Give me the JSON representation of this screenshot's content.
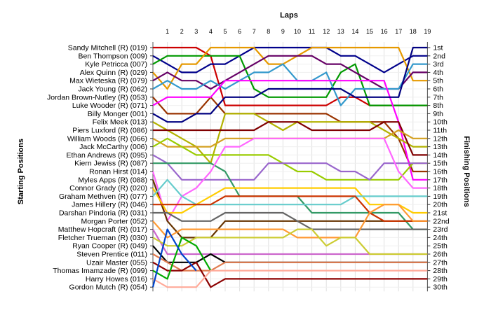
{
  "chart_data": {
    "type": "line",
    "title": "",
    "xlabel": "Laps",
    "ylabel_left": "Starting Positions",
    "ylabel_right": "Finishing Positions",
    "laps": [
      1,
      2,
      3,
      4,
      5,
      6,
      7,
      8,
      9,
      10,
      11,
      12,
      13,
      14,
      15,
      16,
      17,
      18,
      19
    ],
    "x_start_label": "",
    "grid": true,
    "drivers": [
      "Sandy Mitchell (R) (019)",
      "Ben Thompson (009)",
      "Kyle Petricca (007)",
      "Alex Quinn (R) (029)",
      "Max Wieteska (R) (079)",
      "Jack Young (R) (062)",
      "Jordan Brown-Nutley (R) (053)",
      "Luke Wooder (R) (071)",
      "Billy Monger (001)",
      "Felix Meek (013)",
      "Piers Luxford (R) (086)",
      "William Woods (R) (066)",
      "Jack McCarthy (006)",
      "Ethan Andrews (R) (095)",
      "Kiern Jewiss (R) (087)",
      "Ronan Hirst (014)",
      "Myles Apps (R) (088)",
      "Connor Grady (R) (020)",
      "Graham Methven (R) (077)",
      "James Hillery (R) (046)",
      "Darshan Pindoria (R) (031)",
      "Morgan Porter (052)",
      "Matthew Hopcraft (R) (017)",
      "Fletcher Trueman (R) (030)",
      "Ryan Cooper (R) (049)",
      "Steven Prentice (011)",
      "Uzair Master (055)",
      "Thomas Imamzade (R) (099)",
      "Harry Howes (016)",
      "Gordon Mutch (R) (054)"
    ],
    "finishing_labels": [
      "1st",
      "2nd",
      "3rd",
      "4th",
      "5th",
      "6th",
      "7th",
      "8th",
      "9th",
      "10th",
      "11th",
      "12th",
      "13th",
      "14th",
      "15th",
      "16th",
      "17th",
      "18th",
      "19th",
      "20th",
      "21st",
      "22nd",
      "23rd",
      "24th",
      "25th",
      "26th",
      "27th",
      "28th",
      "29th",
      "30th"
    ],
    "series": [
      {
        "color": "#cc0000",
        "positions": [
          1,
          1,
          1,
          1,
          2,
          8,
          8,
          8,
          8,
          8,
          8,
          8,
          8,
          7,
          7,
          8,
          8,
          8,
          8,
          8
        ]
      },
      {
        "color": "#00008b",
        "positions": [
          2,
          3,
          4,
          4,
          3,
          3,
          2,
          1,
          1,
          1,
          1,
          1,
          1,
          2,
          2,
          3,
          4,
          3,
          2,
          2
        ]
      },
      {
        "color": "#009900",
        "positions": [
          3,
          2,
          2,
          2,
          2,
          2,
          2,
          6,
          7,
          7,
          7,
          7,
          7,
          4,
          3,
          8,
          8,
          8,
          8,
          8
        ]
      },
      {
        "color": "#e69900",
        "positions": [
          4,
          6,
          3,
          3,
          1,
          1,
          1,
          1,
          3,
          3,
          2,
          1,
          1,
          1,
          1,
          1,
          1,
          1,
          5,
          5
        ]
      },
      {
        "color": "#660066",
        "positions": [
          5,
          4,
          5,
          5,
          6,
          5,
          4,
          3,
          2,
          2,
          2,
          2,
          3,
          3,
          4,
          5,
          6,
          6,
          4,
          4
        ]
      },
      {
        "color": "#3399cc",
        "positions": [
          6,
          5,
          6,
          6,
          5,
          6,
          5,
          4,
          4,
          3,
          5,
          5,
          4,
          8,
          6,
          6,
          6,
          6,
          3,
          3
        ]
      },
      {
        "color": "#993300",
        "positions": [
          7,
          9,
          9,
          9,
          7,
          9,
          9,
          9,
          9,
          9,
          9,
          9,
          9,
          10,
          10,
          10,
          10,
          12,
          16,
          16
        ]
      },
      {
        "color": "#ff00ff",
        "positions": [
          8,
          7,
          7,
          7,
          7,
          5,
          5,
          5,
          5,
          5,
          5,
          5,
          5,
          5,
          5,
          5,
          5,
          10,
          17,
          17
        ]
      },
      {
        "color": "#000080",
        "positions": [
          9,
          10,
          10,
          9,
          9,
          7,
          7,
          7,
          6,
          6,
          6,
          6,
          6,
          6,
          7,
          7,
          7,
          7,
          1,
          1
        ]
      },
      {
        "color": "#b2b200",
        "positions": [
          10,
          11,
          12,
          13,
          15,
          9,
          9,
          9,
          10,
          11,
          10,
          10,
          10,
          10,
          10,
          10,
          11,
          12,
          13,
          13
        ]
      },
      {
        "color": "#800000",
        "positions": [
          11,
          11,
          11,
          11,
          11,
          11,
          11,
          11,
          10,
          10,
          10,
          11,
          11,
          11,
          11,
          11,
          10,
          10,
          14,
          14
        ]
      },
      {
        "color": "#d4a020",
        "positions": [
          12,
          13,
          13,
          13,
          13,
          12,
          12,
          12,
          12,
          12,
          12,
          12,
          12,
          12,
          12,
          12,
          12,
          11,
          12,
          12
        ]
      },
      {
        "color": "#99cc00",
        "positions": [
          13,
          12,
          13,
          14,
          14,
          14,
          14,
          14,
          14,
          15,
          16,
          16,
          17,
          17,
          17,
          17,
          17,
          17,
          15,
          15
        ]
      },
      {
        "color": "#9966cc",
        "positions": [
          14,
          15,
          17,
          17,
          17,
          17,
          17,
          17,
          15,
          15,
          15,
          15,
          15,
          16,
          16,
          17,
          15,
          15,
          15,
          15
        ]
      },
      {
        "color": "#339966",
        "positions": [
          15,
          15,
          15,
          15,
          15,
          16,
          19,
          19,
          19,
          19,
          19,
          21,
          21,
          21,
          21,
          21,
          21,
          21,
          23,
          23
        ]
      },
      {
        "color": "#ff66ff",
        "positions": [
          16,
          22,
          19,
          18,
          16,
          13,
          13,
          12,
          12,
          12,
          12,
          12,
          12,
          12,
          12,
          12,
          12,
          16,
          18,
          18
        ]
      },
      {
        "color": "#663300",
        "positions": [
          17,
          22,
          24,
          24,
          24,
          22,
          22,
          22,
          22,
          22,
          22,
          22,
          22,
          22,
          22,
          22,
          22,
          22,
          22,
          22
        ]
      },
      {
        "color": "#ffcc00",
        "positions": [
          18,
          21,
          21,
          20,
          19,
          18,
          18,
          18,
          18,
          18,
          18,
          18,
          18,
          18,
          18,
          20,
          20,
          20,
          21,
          21
        ]
      },
      {
        "color": "#66cccc",
        "positions": [
          19,
          17,
          19,
          20,
          20,
          20,
          20,
          20,
          20,
          20,
          20,
          20,
          20,
          20,
          19,
          19,
          19,
          19,
          19,
          19
        ]
      },
      {
        "color": "#cc3300",
        "positions": [
          20,
          20,
          20,
          20,
          20,
          19,
          19,
          19,
          19,
          19,
          19,
          19,
          19,
          19,
          19,
          21,
          22,
          22,
          22,
          22
        ]
      },
      {
        "color": "#666666",
        "positions": [
          21,
          21,
          22,
          22,
          22,
          21,
          21,
          21,
          21,
          21,
          22,
          23,
          23,
          23,
          23,
          23,
          23,
          23,
          23,
          23
        ]
      },
      {
        "color": "#ff9933",
        "positions": [
          22,
          24,
          23,
          23,
          23,
          23,
          23,
          23,
          23,
          23,
          24,
          24,
          24,
          24,
          24,
          21,
          20,
          20,
          22,
          22
        ]
      },
      {
        "color": "#cc66cc",
        "positions": [
          23,
          26,
          26,
          26,
          26,
          26,
          26,
          26,
          26,
          26,
          26,
          26,
          26,
          26,
          26,
          26,
          26,
          26,
          26,
          26
        ]
      },
      {
        "color": "#cccc33",
        "positions": [
          24,
          25,
          25,
          24,
          24,
          24,
          24,
          24,
          24,
          24,
          23,
          23,
          25,
          24,
          24,
          26,
          26,
          26,
          26,
          26
        ]
      },
      {
        "color": "#000000",
        "positions": [
          25,
          27,
          27,
          27,
          26,
          27,
          27,
          27,
          27,
          27,
          27,
          27,
          27,
          27,
          27,
          27,
          27,
          27,
          27,
          27
        ]
      },
      {
        "color": "#e07c50",
        "positions": [
          26,
          27,
          28,
          28,
          28,
          27,
          27,
          27,
          27,
          27,
          27,
          27,
          27,
          27,
          27,
          27,
          27,
          27,
          27,
          27
        ]
      },
      {
        "color": "#8b0000",
        "positions": [
          27,
          28,
          28,
          27,
          30,
          29,
          29,
          29,
          29,
          29,
          29,
          29,
          29,
          29,
          29,
          29,
          29,
          29,
          29,
          29
        ]
      },
      {
        "color": "#00aa00",
        "positions": [
          28,
          29,
          24,
          25,
          28,
          null,
          null,
          null,
          null,
          null,
          null,
          null,
          null,
          null,
          null,
          null,
          null,
          null,
          null,
          null
        ]
      },
      {
        "color": "#ffaa99",
        "positions": [
          29,
          30,
          30,
          30,
          28,
          28,
          28,
          28,
          28,
          28,
          28,
          28,
          28,
          28,
          28,
          28,
          28,
          28,
          28,
          28
        ]
      },
      {
        "color": "#0044cc",
        "positions": [
          30,
          23,
          26,
          28,
          null,
          null,
          null,
          null,
          null,
          null,
          null,
          null,
          null,
          null,
          null,
          null,
          null,
          null,
          null,
          null
        ]
      }
    ]
  }
}
